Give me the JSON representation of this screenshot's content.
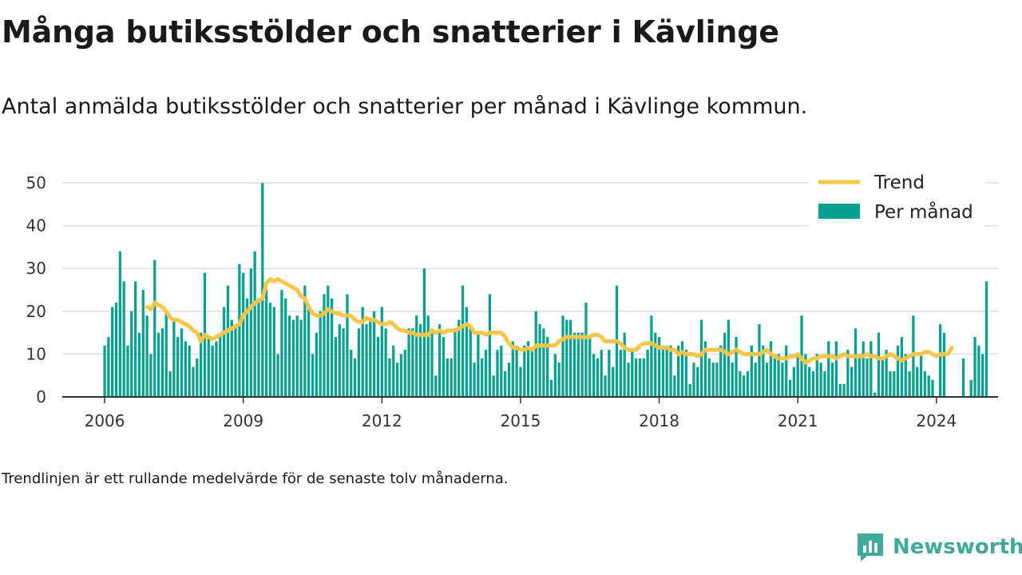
{
  "header": {
    "title": "Många butiksstölder och snatterier i Kävlinge",
    "subtitle": "Antal anmälda butiksstölder och snatterier per månad i Kävlinge kommun."
  },
  "footnote": "Trendlinjen är ett rullande medelvärde för de senaste tolv månaderna.",
  "brand": {
    "name": "Newsworthy",
    "icon": "newsworthy-logo-icon"
  },
  "colors": {
    "bar": "#07a091",
    "trend": "#fbc54a",
    "grid": "#dddddd",
    "axis": "#333333"
  },
  "chart_data": {
    "type": "bar",
    "title": "Många butiksstölder och snatterier i Kävlinge",
    "xlabel": "",
    "ylabel": "",
    "x_start": "2006-01",
    "x_range": [
      "2005-02",
      "2025-05"
    ],
    "ylim": [
      0,
      50
    ],
    "yticks": [
      0,
      10,
      20,
      30,
      40,
      50
    ],
    "xticks": [
      "2006",
      "2009",
      "2012",
      "2015",
      "2018",
      "2021",
      "2024"
    ],
    "grid": true,
    "legend_position": "top-right",
    "legend": [
      {
        "name": "Trend",
        "type": "line"
      },
      {
        "name": "Per månad",
        "type": "bar"
      }
    ],
    "series": [
      {
        "name": "Per månad",
        "type": "bar",
        "values": [
          12,
          14,
          21,
          22,
          34,
          27,
          12,
          20,
          27,
          15,
          25,
          19,
          10,
          32,
          15,
          16,
          20,
          6,
          18,
          14,
          16,
          13,
          12,
          7,
          9,
          15,
          29,
          14,
          12,
          13,
          15,
          21,
          26,
          18,
          17,
          31,
          29,
          23,
          30,
          34,
          23,
          50,
          25,
          22,
          21,
          10,
          25,
          23,
          19,
          18,
          19,
          18,
          26,
          21,
          10,
          15,
          20,
          24,
          26,
          23,
          14,
          17,
          16,
          24,
          11,
          9,
          16,
          21,
          17,
          18,
          20,
          14,
          21,
          16,
          9,
          12,
          8,
          10,
          11,
          16,
          16,
          19,
          17,
          30,
          19,
          16,
          5,
          17,
          14,
          9,
          9,
          16,
          18,
          26,
          21,
          16,
          8,
          15,
          9,
          11,
          24,
          5,
          11,
          12,
          6,
          8,
          13,
          12,
          7,
          12,
          13,
          11,
          20,
          17,
          16,
          14,
          4,
          10,
          8,
          19,
          18,
          18,
          15,
          15,
          15,
          22,
          14,
          10,
          9,
          11,
          5,
          11,
          7,
          26,
          11,
          15,
          8,
          11,
          9,
          9,
          9,
          11,
          19,
          15,
          14,
          12,
          12,
          12,
          5,
          12,
          13,
          11,
          3,
          8,
          7,
          18,
          13,
          9,
          8,
          8,
          12,
          15,
          18,
          8,
          14,
          6,
          5,
          6,
          12,
          8,
          17,
          12,
          8,
          13,
          9,
          10,
          8,
          12,
          4,
          7,
          10,
          19,
          10,
          7,
          6,
          10,
          8,
          6,
          13,
          8,
          13,
          3,
          3,
          11,
          7,
          16,
          10,
          13,
          9,
          13,
          1,
          15,
          9,
          11,
          6,
          6,
          12,
          14,
          10,
          6,
          19,
          7,
          10,
          6,
          5,
          4,
          0,
          17,
          15,
          0,
          0,
          0,
          0,
          9,
          0,
          4,
          14,
          12,
          10,
          27
        ]
      },
      {
        "name": "Trend",
        "type": "line",
        "x_start": "2006-12",
        "values": [
          21,
          20.5,
          22,
          21.5,
          21,
          20,
          18.5,
          18,
          18,
          17.5,
          17,
          16.5,
          15.5,
          15,
          13,
          14.5,
          14,
          13.5,
          14,
          14.5,
          15,
          15.5,
          16,
          16.5,
          17,
          19,
          20,
          21,
          22,
          22.5,
          23,
          26.5,
          27.5,
          27,
          27.5,
          27,
          26.5,
          26,
          25.5,
          25,
          23.5,
          23,
          21,
          19.5,
          19,
          19,
          19.5,
          20.5,
          20,
          19.5,
          19.5,
          19,
          19,
          19,
          18,
          17.5,
          17.5,
          18.5,
          18,
          18,
          17.5,
          17,
          17,
          17.5,
          17,
          16,
          15.5,
          15.5,
          15,
          15,
          14.5,
          14.5,
          14.5,
          14.5,
          15.5,
          15,
          15.5,
          15,
          15.5,
          15.5,
          15.5,
          16,
          16.5,
          17,
          16.5,
          15,
          15,
          15,
          14.5,
          15,
          15,
          15,
          15,
          14,
          12.5,
          11.5,
          11.5,
          11,
          11,
          11.5,
          11,
          12,
          12,
          12,
          12,
          12,
          12,
          13,
          13.5,
          14,
          14,
          14,
          14,
          14,
          14,
          14,
          14.5,
          14.5,
          14,
          13,
          13,
          13,
          13,
          12.5,
          11.5,
          11,
          11,
          11,
          12,
          12.5,
          12.5,
          12.5,
          12,
          11.5,
          11.5,
          11.5,
          11,
          11,
          10,
          10.5,
          10,
          10,
          10,
          9.5,
          10,
          11,
          11,
          11,
          11,
          11,
          10.5,
          10,
          10.5,
          11,
          10.5,
          10,
          10,
          10,
          10,
          10,
          10.5,
          11,
          10,
          9.5,
          9,
          9,
          9,
          9.5,
          9.5,
          10,
          9,
          8,
          8.5,
          9,
          9,
          9.5,
          9.5,
          9.5,
          9.5,
          9,
          9.5,
          10,
          9.5,
          9.5,
          9.5,
          9.5,
          9.5,
          10,
          9.5,
          9.5,
          9,
          9,
          9.5,
          10,
          9.5,
          9,
          8.5,
          9,
          9.5,
          10,
          10,
          10,
          10.5,
          10.5,
          10,
          9.5,
          10,
          10,
          10,
          11.5
        ]
      }
    ]
  }
}
